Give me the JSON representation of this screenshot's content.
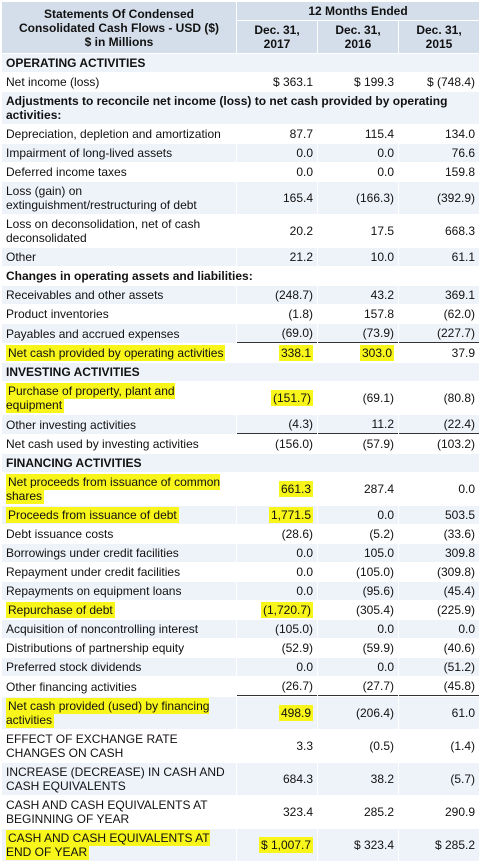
{
  "header": {
    "title": "Statements Of Condensed Consolidated Cash Flows - USD ($)",
    "unit": "$ in Millions",
    "period": "12 Months Ended",
    "columns": [
      "Dec. 31, 2017",
      "Dec. 31, 2016",
      "Dec. 31, 2015"
    ]
  },
  "rows": [
    {
      "label": "OPERATING ACTIVITIES"
    },
    {
      "label": "Net income (loss)",
      "values": [
        "$ 363.1",
        "$ 199.3",
        "$ (748.4)"
      ]
    },
    {
      "label": "Adjustments to reconcile net income (loss) to net cash provided by operating activities:"
    },
    {
      "label": "Depreciation, depletion and amortization",
      "values": [
        "87.7",
        "115.4",
        "134.0"
      ]
    },
    {
      "label": "Impairment of long-lived assets",
      "values": [
        "0.0",
        "0.0",
        "76.6"
      ]
    },
    {
      "label": "Deferred income taxes",
      "values": [
        "0.0",
        "0.0",
        "159.8"
      ]
    },
    {
      "label": "Loss (gain) on extinguishment/restructuring of debt",
      "values": [
        "165.4",
        "(166.3)",
        "(392.9)"
      ]
    },
    {
      "label": "Loss on deconsolidation, net of cash deconsolidated",
      "values": [
        "20.2",
        "17.5",
        "668.3"
      ]
    },
    {
      "label": "Other",
      "values": [
        "21.2",
        "10.0",
        "61.1"
      ]
    },
    {
      "label": "Changes in operating assets and liabilities:"
    },
    {
      "label": "Receivables and other assets",
      "values": [
        "(248.7)",
        "43.2",
        "369.1"
      ]
    },
    {
      "label": "Product inventories",
      "values": [
        "(1.8)",
        "157.8",
        "(62.0)"
      ]
    },
    {
      "label": "Payables and accrued expenses",
      "values": [
        "(69.0)",
        "(73.9)",
        "(227.7)"
      ]
    },
    {
      "label": "Net cash provided by operating activities",
      "values": [
        "338.1",
        "303.0",
        "37.9"
      ]
    },
    {
      "label": "INVESTING ACTIVITIES"
    },
    {
      "label": "Purchase of property, plant and equipment",
      "values": [
        "(151.7)",
        "(69.1)",
        "(80.8)"
      ]
    },
    {
      "label": "Other investing activities",
      "values": [
        "(4.3)",
        "11.2",
        "(22.4)"
      ]
    },
    {
      "label": "Net cash used by investing activities",
      "values": [
        "(156.0)",
        "(57.9)",
        "(103.2)"
      ]
    },
    {
      "label": "FINANCING ACTIVITIES"
    },
    {
      "label": "Net proceeds from issuance of common shares",
      "values": [
        "661.3",
        "287.4",
        "0.0"
      ]
    },
    {
      "label": "Proceeds from issuance of debt",
      "values": [
        "1,771.5",
        "0.0",
        "503.5"
      ]
    },
    {
      "label": "Debt issuance costs",
      "values": [
        "(28.6)",
        "(5.2)",
        "(33.6)"
      ]
    },
    {
      "label": "Borrowings under credit facilities",
      "values": [
        "0.0",
        "105.0",
        "309.8"
      ]
    },
    {
      "label": "Repayment under credit facilities",
      "values": [
        "0.0",
        "(105.0)",
        "(309.8)"
      ]
    },
    {
      "label": "Repayments on equipment loans",
      "values": [
        "0.0",
        "(95.6)",
        "(45.4)"
      ]
    },
    {
      "label": "Repurchase of debt",
      "values": [
        "(1,720.7)",
        "(305.4)",
        "(225.9)"
      ]
    },
    {
      "label": "Acquisition of noncontrolling interest",
      "values": [
        "(105.0)",
        "0.0",
        "0.0"
      ]
    },
    {
      "label": "Distributions of partnership equity",
      "values": [
        "(52.9)",
        "(59.9)",
        "(40.6)"
      ]
    },
    {
      "label": "Preferred stock dividends",
      "values": [
        "0.0",
        "0.0",
        "(51.2)"
      ]
    },
    {
      "label": "Other financing activities",
      "values": [
        "(26.7)",
        "(27.7)",
        "(45.8)"
      ]
    },
    {
      "label": "Net cash provided (used) by financing activities",
      "values": [
        "498.9",
        "(206.4)",
        "61.0"
      ]
    },
    {
      "label": "EFFECT OF EXCHANGE RATE CHANGES ON CASH",
      "values": [
        "3.3",
        "(0.5)",
        "(1.4)"
      ]
    },
    {
      "label": "INCREASE (DECREASE) IN CASH AND CASH EQUIVALENTS",
      "values": [
        "684.3",
        "38.2",
        "(5.7)"
      ]
    },
    {
      "label": "CASH AND CASH EQUIVALENTS AT BEGINNING OF YEAR",
      "values": [
        "323.4",
        "285.2",
        "290.9"
      ]
    },
    {
      "label": "CASH AND CASH EQUIVALENTS AT END OF YEAR",
      "values": [
        "$ 1,007.7",
        "$ 323.4",
        "$ 285.2"
      ]
    }
  ]
}
